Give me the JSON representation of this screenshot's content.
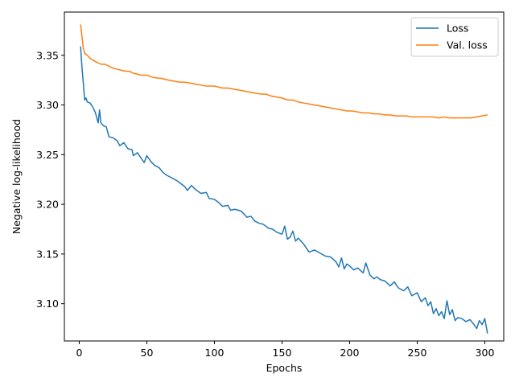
{
  "chart_data": {
    "type": "line",
    "xlabel": "Epochs",
    "ylabel": "Negative log-likelihood",
    "xlim": [
      -11,
      314
    ],
    "ylim": [
      3.0625,
      3.3935
    ],
    "xticks": [
      0,
      50,
      100,
      150,
      200,
      250,
      300
    ],
    "yticks": [
      3.1,
      3.15,
      3.2,
      3.25,
      3.3,
      3.35
    ],
    "xtick_labels": [
      "0",
      "50",
      "100",
      "150",
      "200",
      "250",
      "300"
    ],
    "ytick_labels": [
      "3.10",
      "3.15",
      "3.20",
      "3.25",
      "3.30",
      "3.35"
    ],
    "grid": false,
    "legend_position": "top-right",
    "series": [
      {
        "name": "Loss",
        "color": "#1f77b4",
        "x": [
          1,
          2,
          3,
          4,
          5,
          6,
          8,
          10,
          12,
          14,
          15,
          16,
          18,
          20,
          22,
          25,
          28,
          30,
          33,
          36,
          39,
          40,
          43,
          46,
          48,
          50,
          53,
          56,
          59,
          62,
          65,
          68,
          72,
          75,
          78,
          80,
          83,
          86,
          90,
          94,
          96,
          100,
          103,
          106,
          110,
          112,
          115,
          118,
          120,
          124,
          127,
          130,
          133,
          136,
          140,
          143,
          146,
          150,
          152,
          154,
          156,
          158,
          160,
          162,
          164,
          166,
          170,
          174,
          178,
          182,
          186,
          190,
          192,
          194,
          196,
          198,
          200,
          203,
          206,
          210,
          212,
          215,
          218,
          220,
          223,
          226,
          230,
          233,
          236,
          240,
          243,
          246,
          250,
          253,
          256,
          258,
          260,
          262,
          264,
          266,
          268,
          270,
          272,
          274,
          276,
          278,
          280,
          283,
          286,
          289,
          292,
          294,
          296,
          298,
          300,
          302
        ],
        "y": [
          3.359,
          3.338,
          3.322,
          3.305,
          3.307,
          3.303,
          3.302,
          3.298,
          3.292,
          3.282,
          3.295,
          3.282,
          3.279,
          3.278,
          3.268,
          3.267,
          3.264,
          3.259,
          3.262,
          3.256,
          3.255,
          3.249,
          3.252,
          3.246,
          3.242,
          3.249,
          3.243,
          3.239,
          3.237,
          3.232,
          3.229,
          3.227,
          3.224,
          3.221,
          3.218,
          3.214,
          3.219,
          3.215,
          3.211,
          3.212,
          3.206,
          3.205,
          3.202,
          3.198,
          3.199,
          3.194,
          3.195,
          3.194,
          3.193,
          3.187,
          3.188,
          3.183,
          3.181,
          3.18,
          3.176,
          3.175,
          3.172,
          3.17,
          3.178,
          3.165,
          3.167,
          3.173,
          3.163,
          3.166,
          3.163,
          3.16,
          3.152,
          3.154,
          3.151,
          3.148,
          3.147,
          3.142,
          3.137,
          3.146,
          3.135,
          3.14,
          3.138,
          3.134,
          3.136,
          3.131,
          3.141,
          3.129,
          3.125,
          3.127,
          3.124,
          3.123,
          3.118,
          3.122,
          3.116,
          3.113,
          3.117,
          3.108,
          3.111,
          3.102,
          3.106,
          3.098,
          3.102,
          3.09,
          3.095,
          3.088,
          3.092,
          3.085,
          3.103,
          3.089,
          3.094,
          3.083,
          3.086,
          3.085,
          3.082,
          3.084,
          3.079,
          3.075,
          3.083,
          3.079,
          3.085,
          3.07
        ]
      },
      {
        "name": "Val. loss",
        "color": "#ff7f0e",
        "x": [
          1,
          2,
          3,
          4,
          5,
          6,
          8,
          10,
          13,
          16,
          19,
          22,
          25,
          28,
          31,
          34,
          37,
          40,
          43,
          46,
          50,
          54,
          58,
          60,
          63,
          66,
          70,
          74,
          78,
          82,
          86,
          90,
          94,
          98,
          100,
          103,
          106,
          110,
          114,
          118,
          122,
          126,
          130,
          134,
          138,
          142,
          146,
          150,
          154,
          158,
          162,
          166,
          170,
          174,
          178,
          182,
          186,
          190,
          194,
          198,
          202,
          206,
          210,
          214,
          218,
          222,
          226,
          230,
          234,
          238,
          242,
          246,
          250,
          254,
          258,
          262,
          266,
          270,
          274,
          278,
          282,
          286,
          290,
          294,
          298,
          302
        ],
        "y": [
          3.381,
          3.369,
          3.357,
          3.352,
          3.351,
          3.35,
          3.347,
          3.345,
          3.343,
          3.341,
          3.341,
          3.339,
          3.337,
          3.336,
          3.335,
          3.334,
          3.334,
          3.332,
          3.331,
          3.33,
          3.33,
          3.328,
          3.327,
          3.327,
          3.326,
          3.325,
          3.324,
          3.323,
          3.323,
          3.322,
          3.321,
          3.32,
          3.319,
          3.319,
          3.319,
          3.318,
          3.317,
          3.317,
          3.316,
          3.315,
          3.314,
          3.313,
          3.312,
          3.311,
          3.311,
          3.309,
          3.308,
          3.307,
          3.305,
          3.305,
          3.303,
          3.302,
          3.301,
          3.3,
          3.299,
          3.298,
          3.297,
          3.296,
          3.295,
          3.294,
          3.294,
          3.293,
          3.292,
          3.292,
          3.291,
          3.291,
          3.29,
          3.29,
          3.289,
          3.289,
          3.289,
          3.288,
          3.288,
          3.288,
          3.288,
          3.288,
          3.287,
          3.288,
          3.287,
          3.287,
          3.287,
          3.287,
          3.287,
          3.288,
          3.289,
          3.29
        ]
      }
    ]
  }
}
